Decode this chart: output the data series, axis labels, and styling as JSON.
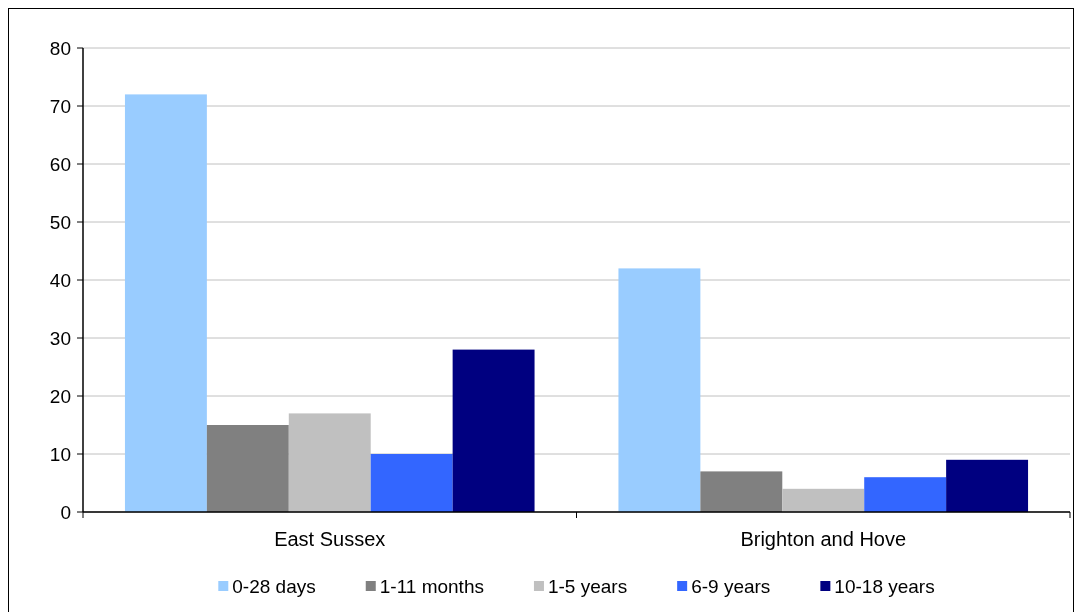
{
  "chart_data": {
    "type": "bar",
    "categories": [
      "East Sussex",
      "Brighton and Hove"
    ],
    "series": [
      {
        "name": "0-28 days",
        "color": "#99ccff",
        "values": [
          72,
          42
        ]
      },
      {
        "name": "1-11 months",
        "color": "#808080",
        "values": [
          15,
          7
        ]
      },
      {
        "name": "1-5 years",
        "color": "#c0c0c0",
        "values": [
          17,
          4
        ]
      },
      {
        "name": "6-9 years",
        "color": "#3366ff",
        "values": [
          10,
          6
        ]
      },
      {
        "name": "10-18 years",
        "color": "#000080",
        "values": [
          28,
          9
        ]
      }
    ],
    "ylim": [
      0,
      80
    ],
    "yticks": [
      0,
      10,
      20,
      30,
      40,
      50,
      60,
      70,
      80
    ],
    "grid": "y",
    "legend": "bottom"
  }
}
